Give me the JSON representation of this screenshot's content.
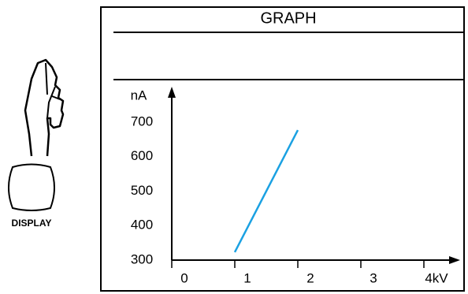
{
  "header": "GRAPH",
  "button_label": "DISPLAY",
  "chart_data": {
    "type": "line",
    "y_label": "nA",
    "x": [
      1,
      2
    ],
    "series": [
      {
        "color": "#1ba1e2",
        "values": [
          323,
          677
        ]
      }
    ],
    "xlim": [
      0,
      4
    ],
    "xticks": [
      0,
      1,
      2,
      3,
      {
        "value": 4,
        "label": "4kV"
      }
    ],
    "ylim": [
      300,
      700
    ],
    "yticks": [
      300,
      400,
      500,
      600,
      700
    ]
  }
}
